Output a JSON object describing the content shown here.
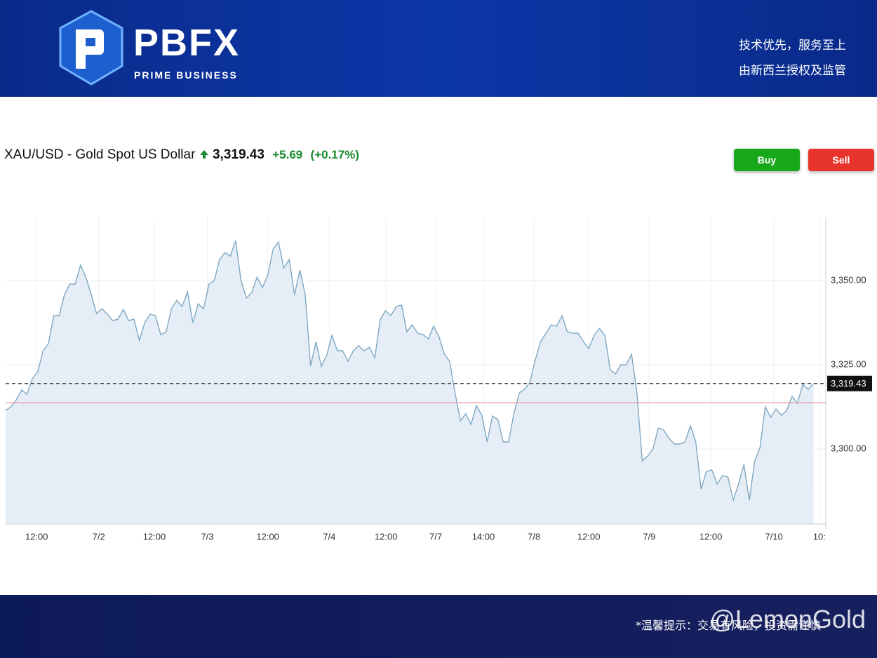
{
  "header": {
    "logo_text": "PBFX",
    "logo_sub": "PRIME BUSINESS",
    "slogan_1": "技术优先，服务至上",
    "slogan_2": "由新西兰授权及监管"
  },
  "instrument": {
    "name": "XAU/USD - Gold Spot US Dollar",
    "price": "3,319.43",
    "change": "+5.69",
    "change_pct": "(+0.17%)"
  },
  "buttons": {
    "buy": "Buy",
    "sell": "Sell"
  },
  "footer": {
    "notice": "*温馨提示：交易有风险，投资需谨慎",
    "watermark": "@LemonGold"
  },
  "chart_data": {
    "type": "area",
    "color": "#7fa8c4",
    "fill": "#e5eef6",
    "grid": true,
    "ylim": [
      3277.7,
      3368.75
    ],
    "yticks": [
      {
        "value": 3300,
        "label": "3,300.00"
      },
      {
        "value": 3325,
        "label": "3,325.00"
      },
      {
        "value": 3350,
        "label": "3,350.00"
      }
    ],
    "xlim": [
      0,
      153.3
    ],
    "xticks": [
      {
        "value": 5.8,
        "label": "12:00"
      },
      {
        "value": 17.4,
        "label": "7/2"
      },
      {
        "value": 27.8,
        "label": "12:00"
      },
      {
        "value": 37.7,
        "label": "7/3"
      },
      {
        "value": 49,
        "label": "12:00"
      },
      {
        "value": 60.5,
        "label": "7/4"
      },
      {
        "value": 71.1,
        "label": "12:00"
      },
      {
        "value": 80.4,
        "label": "7/7"
      },
      {
        "value": 89.3,
        "label": "14:00"
      },
      {
        "value": 98.75,
        "label": "7/8"
      },
      {
        "value": 109,
        "label": "12:00"
      },
      {
        "value": 120.3,
        "label": "7/9"
      },
      {
        "value": 131.8,
        "label": "12:00"
      },
      {
        "value": 143.6,
        "label": "7/10"
      },
      {
        "value": 152.1,
        "label": "10:"
      }
    ],
    "last": {
      "value": 3319.43,
      "label": "3,319.43"
    },
    "prev_close": 3313.74,
    "values": [
      3311.46,
      3312.5,
      3314.58,
      3317.5,
      3316.25,
      3320.83,
      3322.92,
      3329.17,
      3331.25,
      3339.58,
      3339.58,
      3345.83,
      3348.96,
      3348.96,
      3354.58,
      3351.04,
      3345.83,
      3340.21,
      3341.67,
      3340,
      3338.13,
      3338.54,
      3341.46,
      3338.13,
      3338.54,
      3332.29,
      3337.5,
      3340,
      3339.58,
      3333.96,
      3334.79,
      3341.67,
      3344.17,
      3342.29,
      3346.67,
      3337.5,
      3343.13,
      3341.67,
      3348.96,
      3350,
      3356.25,
      3358.33,
      3357.29,
      3361.88,
      3350,
      3344.79,
      3346.46,
      3351.04,
      3347.92,
      3351.67,
      3359.38,
      3361.46,
      3353.75,
      3356.25,
      3345.83,
      3353.13,
      3345.83,
      3324.58,
      3331.88,
      3324.58,
      3327.71,
      3333.75,
      3329.17,
      3329.17,
      3326.04,
      3329.17,
      3330.63,
      3329.17,
      3330.21,
      3327.08,
      3338.33,
      3341.04,
      3339.58,
      3342.29,
      3342.71,
      3334.79,
      3336.88,
      3334.38,
      3333.96,
      3332.71,
      3336.46,
      3333.33,
      3328.13,
      3326.04,
      3316.67,
      3308.33,
      3310.42,
      3307.29,
      3312.92,
      3310,
      3302.08,
      3309.79,
      3308.75,
      3302.08,
      3302.08,
      3310.42,
      3316.67,
      3317.71,
      3319.79,
      3326.46,
      3331.88,
      3334.38,
      3336.88,
      3336.46,
      3339.58,
      3334.79,
      3334.38,
      3334.38,
      3331.88,
      3329.79,
      3333.75,
      3335.83,
      3333.75,
      3323.54,
      3322.29,
      3325,
      3325,
      3328.13,
      3316.67,
      3296.46,
      3297.92,
      3300,
      3306.25,
      3305.63,
      3303.13,
      3301.46,
      3301.46,
      3302.08,
      3306.88,
      3302.08,
      3288.13,
      3293.33,
      3293.75,
      3289.58,
      3292.08,
      3291.67,
      3284.79,
      3289.58,
      3295.42,
      3284.79,
      3296.25,
      3300.42,
      3312.5,
      3309.38,
      3311.88,
      3310,
      3311.46,
      3315.63,
      3313.54,
      3319.17,
      3317.71,
      3319.43
    ]
  }
}
